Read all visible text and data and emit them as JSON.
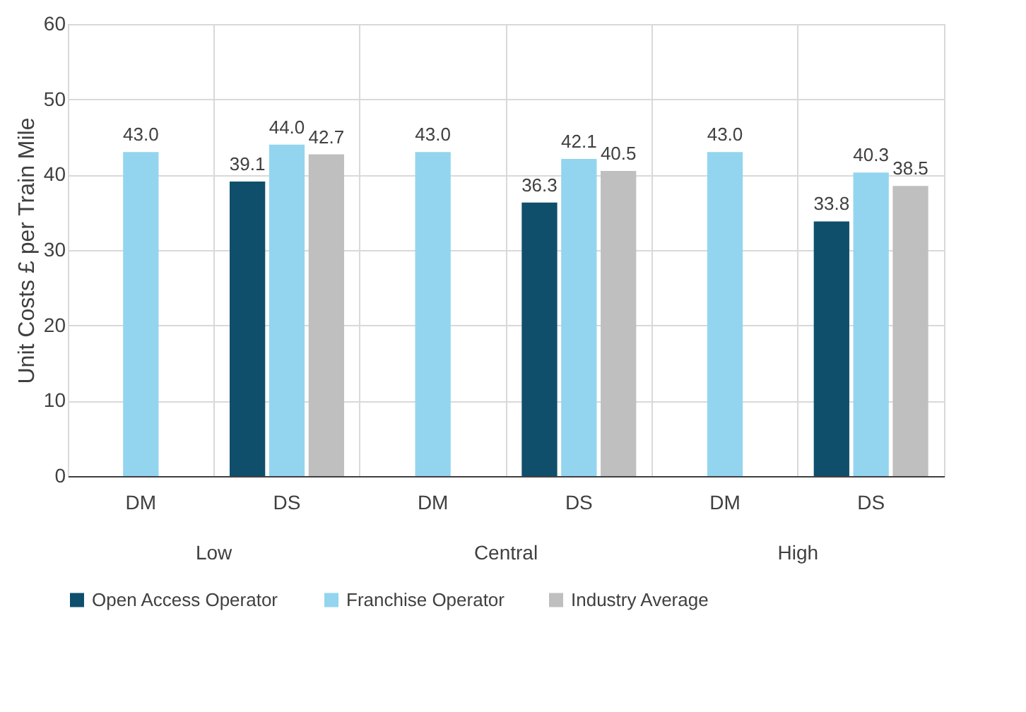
{
  "chart_data": {
    "type": "bar",
    "ylabel": "Unit Costs £ per Train Mile",
    "categories": [
      "DM",
      "DS",
      "DM",
      "DS",
      "DM",
      "DS"
    ],
    "annotations": [
      "Low",
      "Central",
      "High"
    ],
    "series": [
      {
        "name": "Open Access Operator",
        "color": "#0f4f6c",
        "values": [
          null,
          39.1,
          null,
          36.3,
          null,
          33.8
        ],
        "value_labels": [
          null,
          "39.1",
          null,
          "36.3",
          null,
          "33.8"
        ]
      },
      {
        "name": "Franchise Operator",
        "color": "#93d5ef",
        "values": [
          43.0,
          44.0,
          43.0,
          42.1,
          43.0,
          40.3
        ],
        "value_labels": [
          "43.0",
          "44.0",
          "43.0",
          "42.1",
          "43.0",
          "40.3"
        ]
      },
      {
        "name": "Industry Average",
        "color": "#bfbfbf",
        "values": [
          null,
          42.7,
          null,
          40.5,
          null,
          38.5
        ],
        "value_labels": [
          null,
          "42.7",
          null,
          "40.5",
          null,
          "38.5"
        ]
      }
    ],
    "ylim": [
      0,
      60
    ],
    "yticks": [
      0,
      10,
      20,
      30,
      40,
      50,
      60
    ],
    "grid": true,
    "legend": "bottom"
  }
}
